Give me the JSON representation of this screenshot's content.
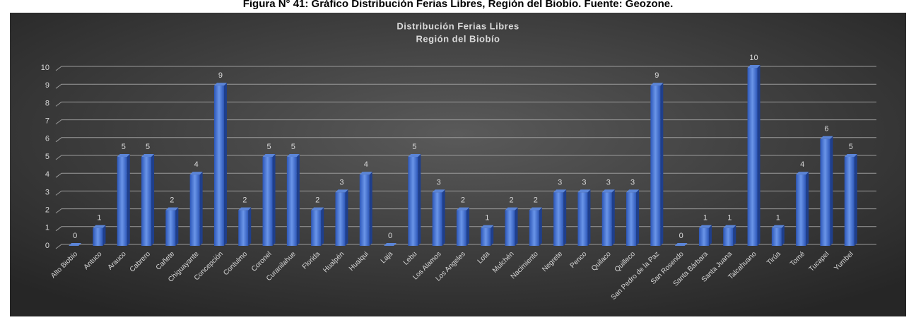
{
  "caption": "Figura N° 41: Gráfico Distribución Ferias Libres, Región del Biobío. Fuente: Geozone.",
  "chart_data": {
    "type": "bar",
    "title": "Distribución Ferias Libres",
    "subtitle": "Región del Biobío",
    "categories": [
      "Alto Biobío",
      "Antuco",
      "Arauco",
      "Cabrero",
      "Cañete",
      "Chiguayante",
      "Concepción",
      "Contulmo",
      "Coronel",
      "Curanilahue",
      "Florida",
      "Hualpén",
      "Hualqui",
      "Laja",
      "Lebu",
      "Los Alamos",
      "Los Angeles",
      "Lota",
      "Mulchén",
      "Nacimiento",
      "Negrete",
      "Penco",
      "Quilaco",
      "Quilleco",
      "San Pedro de la Paz",
      "San Rosendo",
      "Santa Bárbara",
      "Santa Juana",
      "Talcahuano",
      "Tirúa",
      "Tomé",
      "Tucapel",
      "Yumbel"
    ],
    "values": [
      0,
      1,
      5,
      5,
      2,
      4,
      9,
      2,
      5,
      5,
      2,
      3,
      4,
      0,
      5,
      3,
      2,
      1,
      2,
      2,
      3,
      3,
      3,
      3,
      9,
      0,
      1,
      1,
      10,
      1,
      4,
      6,
      5
    ],
    "color": "#4472c4",
    "ylim": [
      0,
      10
    ],
    "yticks": [
      0,
      1,
      2,
      3,
      4,
      5,
      6,
      7,
      8,
      9,
      10
    ],
    "grid": true
  }
}
